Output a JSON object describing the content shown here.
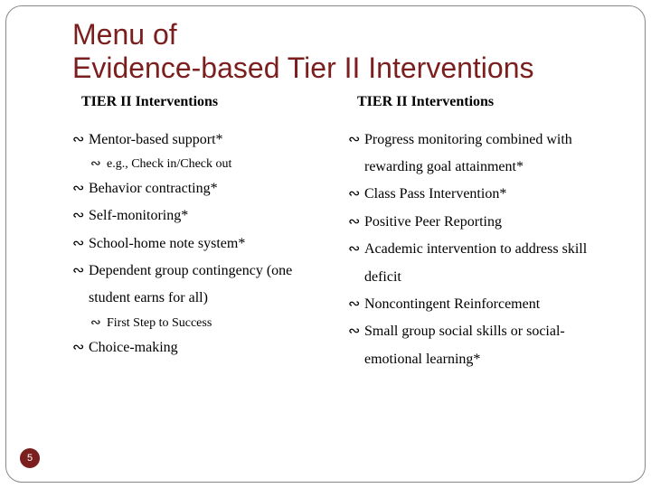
{
  "title_line1": "Menu of",
  "title_line2": "Evidence-based Tier II Interventions",
  "colors": {
    "title": "#7a1e1e",
    "text": "#000000",
    "background": "#ffffff",
    "page_badge_bg": "#7a1e1e",
    "page_badge_fg": "#ffffff",
    "border": "#888888"
  },
  "left": {
    "header": "TIER II Interventions",
    "items": [
      {
        "text": "Mentor-based support*",
        "sub": false
      },
      {
        "text": "e.g., Check in/Check out",
        "sub": true
      },
      {
        "text": "Behavior contracting*",
        "sub": false
      },
      {
        "text": "Self-monitoring*",
        "sub": false
      },
      {
        "text": "School-home note system*",
        "sub": false
      },
      {
        "text": "Dependent group contingency (one",
        "sub": false
      },
      {
        "text": "student earns for all)",
        "cont": true
      },
      {
        "text": "First Step to Success",
        "sub": true
      },
      {
        "text": "Choice-making",
        "sub": false
      }
    ]
  },
  "right": {
    "header": "TIER II Interventions",
    "items": [
      {
        "text": "Progress monitoring combined with",
        "sub": false
      },
      {
        "text": "rewarding goal attainment*",
        "cont": true
      },
      {
        "text": "Class Pass Intervention*",
        "sub": false
      },
      {
        "text": "Positive Peer Reporting",
        "sub": false
      },
      {
        "text": "Academic intervention to address skill",
        "sub": false
      },
      {
        "text": "deficit",
        "cont": true
      },
      {
        "text": "Noncontingent Reinforcement",
        "sub": false
      },
      {
        "text": "Small group social skills or social-",
        "sub": false
      },
      {
        "text": "emotional learning*",
        "cont": true
      }
    ]
  },
  "page_number": "5"
}
